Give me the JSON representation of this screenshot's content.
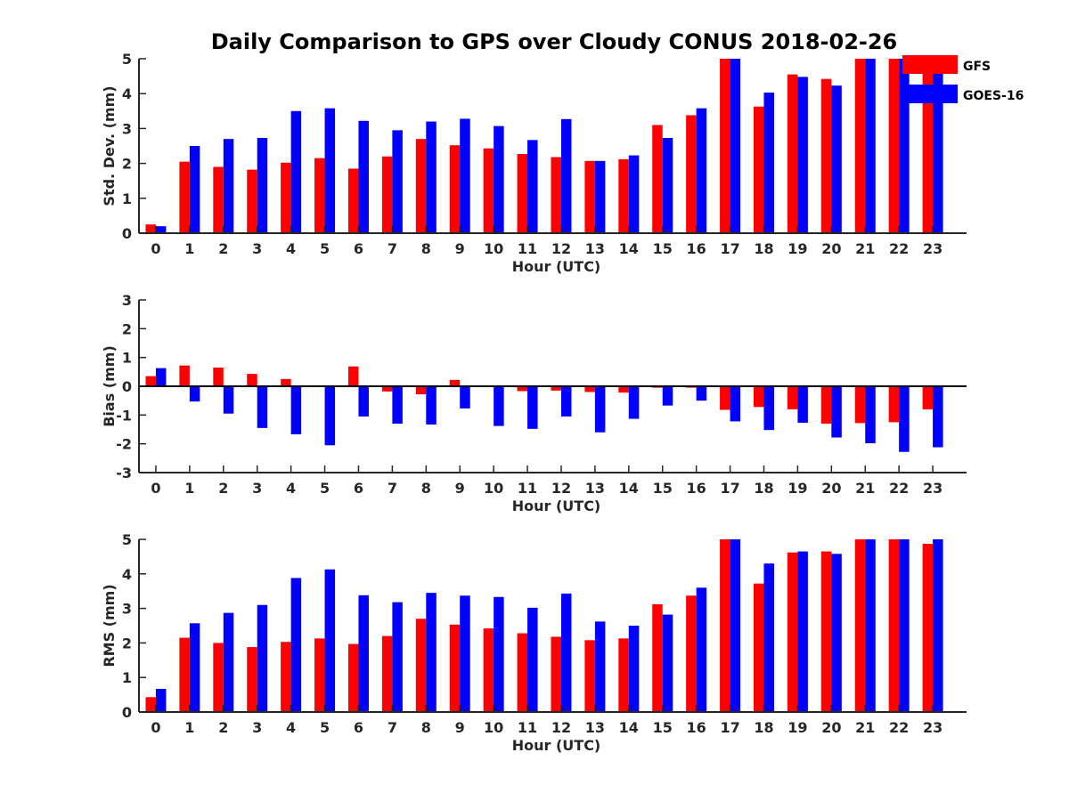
{
  "chart_data": {
    "type": "bar",
    "title": "Daily Comparison to GPS over Cloudy CONUS 2018-02-26",
    "categories": [
      "0",
      "1",
      "2",
      "3",
      "4",
      "5",
      "6",
      "7",
      "8",
      "9",
      "10",
      "11",
      "12",
      "13",
      "14",
      "15",
      "16",
      "17",
      "18",
      "19",
      "20",
      "21",
      "22",
      "23"
    ],
    "legend": {
      "placement": "top-right",
      "entries": [
        {
          "name": "GFS",
          "color": "#ff0000"
        },
        {
          "name": "GOES-16",
          "color": "#0000ff"
        }
      ]
    },
    "panels": [
      {
        "ylabel": "Std. Dev. (mm)",
        "xlabel": "Hour (UTC)",
        "ylim": [
          0,
          5
        ],
        "yticks": [
          "0",
          "1",
          "2",
          "3",
          "4",
          "5"
        ],
        "series": [
          {
            "name": "GFS",
            "color": "#ff0000",
            "values": [
              0.25,
              2.05,
              1.9,
              1.82,
              2.02,
              2.15,
              1.85,
              2.2,
              2.7,
              2.52,
              2.43,
              2.27,
              2.18,
              2.07,
              2.12,
              3.1,
              3.38,
              5.0,
              3.63,
              4.55,
              4.42,
              5.0,
              5.0,
              4.9
            ]
          },
          {
            "name": "GOES-16",
            "color": "#0000ff",
            "values": [
              0.2,
              2.5,
              2.7,
              2.73,
              3.5,
              3.58,
              3.22,
              2.95,
              3.2,
              3.28,
              3.07,
              2.67,
              3.27,
              2.07,
              2.23,
              2.73,
              3.58,
              5.0,
              4.03,
              4.48,
              4.23,
              5.0,
              5.0,
              4.97
            ]
          }
        ]
      },
      {
        "ylabel": "Bias (mm)",
        "xlabel": "Hour (UTC)",
        "ylim": [
          -3,
          3
        ],
        "yticks": [
          "-3",
          "-2",
          "-1",
          "0",
          "1",
          "2",
          "3"
        ],
        "series": [
          {
            "name": "GFS",
            "color": "#ff0000",
            "values": [
              0.35,
              0.72,
              0.65,
              0.43,
              0.25,
              0.0,
              0.69,
              -0.18,
              -0.28,
              0.22,
              0.0,
              -0.17,
              -0.15,
              -0.2,
              -0.22,
              -0.05,
              -0.05,
              -0.82,
              -0.72,
              -0.8,
              -1.3,
              -1.28,
              -1.25,
              -0.8
            ]
          },
          {
            "name": "GOES-16",
            "color": "#0000ff",
            "values": [
              0.63,
              -0.53,
              -0.95,
              -1.45,
              -1.67,
              -2.05,
              -1.05,
              -1.3,
              -1.33,
              -0.77,
              -1.38,
              -1.48,
              -1.05,
              -1.6,
              -1.13,
              -0.67,
              -0.5,
              -1.22,
              -1.52,
              -1.27,
              -1.78,
              -1.98,
              -2.28,
              -2.12
            ]
          }
        ]
      },
      {
        "ylabel": "RMS (mm)",
        "xlabel": "Hour (UTC)",
        "ylim": [
          0,
          5
        ],
        "yticks": [
          "0",
          "1",
          "2",
          "3",
          "4",
          "5"
        ],
        "series": [
          {
            "name": "GFS",
            "color": "#ff0000",
            "values": [
              0.43,
              2.15,
              2.0,
              1.88,
              2.03,
              2.13,
              1.97,
              2.2,
              2.7,
              2.53,
              2.42,
              2.28,
              2.18,
              2.08,
              2.13,
              3.12,
              3.37,
              5.0,
              3.72,
              4.62,
              4.65,
              5.0,
              5.0,
              4.87
            ]
          },
          {
            "name": "GOES-16",
            "color": "#0000ff",
            "values": [
              0.67,
              2.57,
              2.87,
              3.1,
              3.88,
              4.13,
              3.38,
              3.18,
              3.45,
              3.37,
              3.33,
              3.02,
              3.43,
              2.62,
              2.5,
              2.82,
              3.6,
              5.0,
              4.3,
              4.65,
              4.58,
              5.0,
              5.0,
              5.0
            ]
          }
        ]
      }
    ]
  }
}
